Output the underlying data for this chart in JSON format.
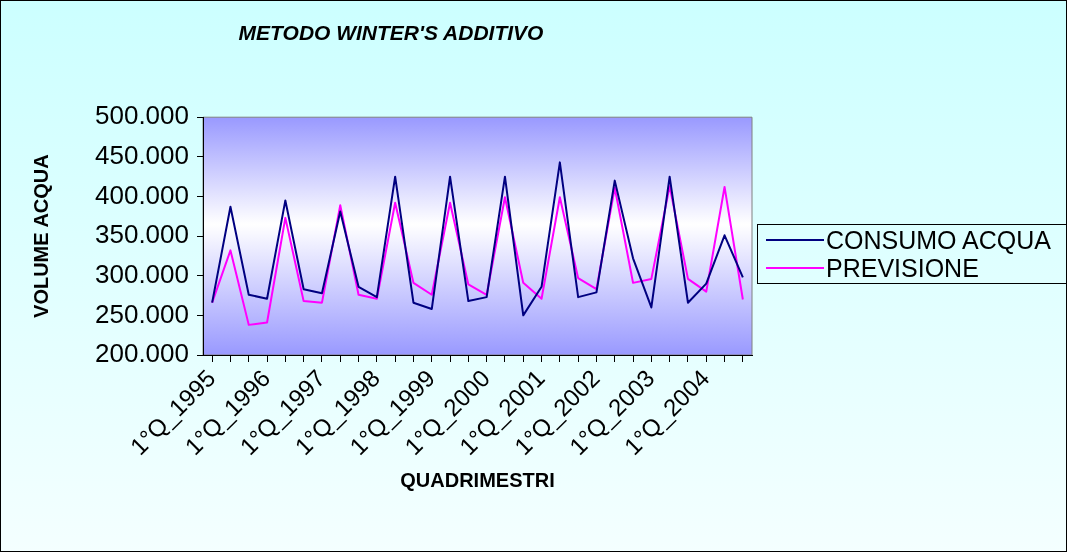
{
  "chart_data": {
    "type": "line",
    "title": "METODO WINTER'S ADDITIVO",
    "xlabel": "QUADRIMESTRI",
    "ylabel": "VOLUME ACQUA",
    "categories": [
      "1°Q_1995",
      null,
      null,
      "1°Q_1996",
      null,
      null,
      "1°Q_1997",
      null,
      null,
      "1°Q_1998",
      null,
      null,
      "1°Q_1999",
      null,
      null,
      "1°Q_2000",
      null,
      null,
      "1°Q_2001",
      null,
      null,
      "1°Q_2002",
      null,
      null,
      "1°Q_2003",
      null,
      null,
      "1°Q_2004",
      null,
      null
    ],
    "series": [
      {
        "name": "CONSUMO ACQUA",
        "color": "#000080",
        "values": [
          266000,
          387000,
          276000,
          271000,
          395000,
          283000,
          278000,
          381000,
          286000,
          273000,
          425000,
          266000,
          258000,
          425000,
          268000,
          273000,
          425000,
          250000,
          286000,
          443000,
          273000,
          279000,
          420000,
          322000,
          260000,
          425000,
          266000,
          290000,
          351000,
          298000
        ]
      },
      {
        "name": "PREVISIONE",
        "color": "#ff00ff",
        "values": [
          266000,
          332000,
          238000,
          241000,
          373000,
          268000,
          266000,
          389000,
          276000,
          271000,
          392000,
          291000,
          276000,
          392000,
          289000,
          276000,
          399000,
          291000,
          271000,
          399000,
          297000,
          283000,
          411000,
          291000,
          296000,
          413000,
          296000,
          280000,
          412000,
          270000
        ]
      }
    ],
    "ylim": [
      200000,
      500000
    ],
    "yticks": [
      {
        "value": 200000,
        "label": "200.000"
      },
      {
        "value": 250000,
        "label": "250.000"
      },
      {
        "value": 300000,
        "label": "300.000"
      },
      {
        "value": 350000,
        "label": "350.000"
      },
      {
        "value": 400000,
        "label": "400.000"
      },
      {
        "value": 450000,
        "label": "450.000"
      },
      {
        "value": 500000,
        "label": "500.000"
      }
    ],
    "grid": false,
    "legend": "right",
    "marker": "none",
    "line_style": "solid"
  }
}
